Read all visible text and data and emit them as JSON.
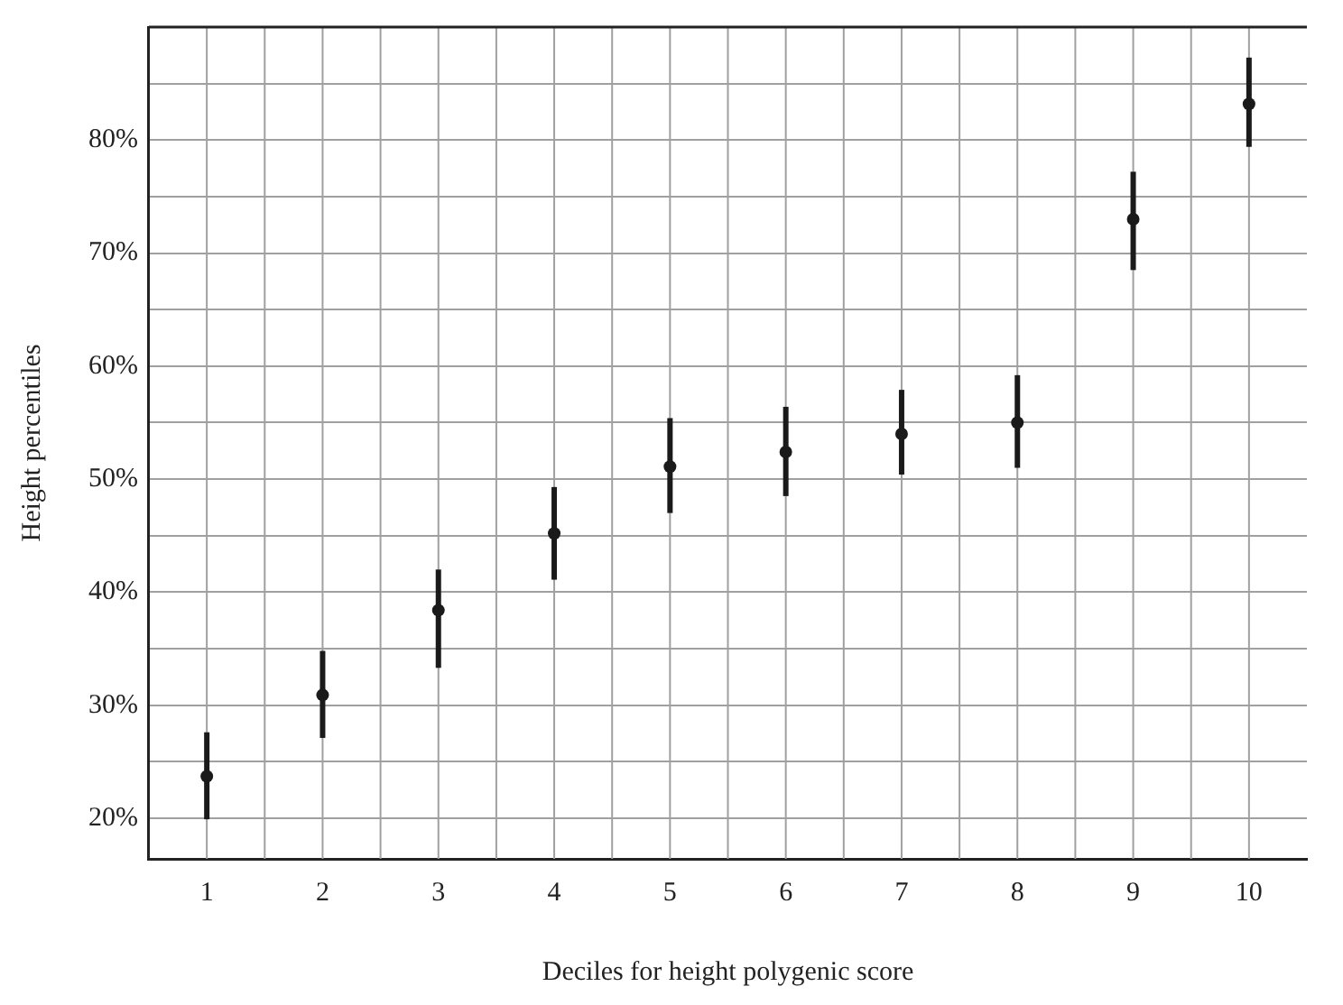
{
  "chart_data": {
    "type": "scatter",
    "xlabel": "Deciles for height polygenic score",
    "ylabel": "Height percentiles",
    "categories": [
      "1",
      "2",
      "3",
      "4",
      "5",
      "6",
      "7",
      "8",
      "9",
      "10"
    ],
    "series": [
      {
        "color": "#1a1a1a",
        "values": [
          23.7,
          30.9,
          38.4,
          45.2,
          51.1,
          52.4,
          54.0,
          55.0,
          73.0,
          83.2
        ],
        "errors": [
          [
            19.9,
            27.6
          ],
          [
            27.1,
            34.8
          ],
          [
            33.3,
            42.0
          ],
          [
            41.1,
            49.3
          ],
          [
            47.0,
            55.4
          ],
          [
            48.5,
            56.4
          ],
          [
            50.4,
            57.9
          ],
          [
            51.0,
            59.2
          ],
          [
            68.5,
            77.2
          ],
          [
            79.4,
            87.3
          ]
        ]
      }
    ],
    "ylim": [
      16.4,
      90
    ],
    "yticks": [
      {
        "value": 20,
        "label": "20%"
      },
      {
        "value": 25,
        "label": null
      },
      {
        "value": 30,
        "label": "30%"
      },
      {
        "value": 35,
        "label": null
      },
      {
        "value": 40,
        "label": "40%"
      },
      {
        "value": 45,
        "label": null
      },
      {
        "value": 50,
        "label": "50%"
      },
      {
        "value": 55,
        "label": null
      },
      {
        "value": 60,
        "label": "60%"
      },
      {
        "value": 65,
        "label": null
      },
      {
        "value": 70,
        "label": "70%"
      },
      {
        "value": 75,
        "label": null
      },
      {
        "value": 80,
        "label": "80%"
      },
      {
        "value": 85,
        "label": null
      },
      {
        "value": 90,
        "label": null
      }
    ],
    "grid": true,
    "legend": false,
    "marker": "circle"
  }
}
